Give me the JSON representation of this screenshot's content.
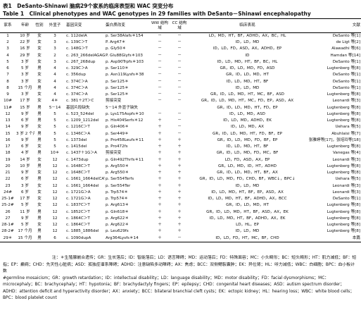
{
  "header": {
    "title_cn": "表1　DeSanto-Shinawi 脑病29个家系的临床表型和 WAC 突变分布",
    "title_en": "Table 1　Clinical phenotypes and WAC genotypes in 29 families with DeSanto－Shinawi encephalopathy"
  },
  "table": {
    "columns": [
      "家系",
      "年龄",
      "性别",
      "外显子",
      "基因突变",
      "蛋白质改变",
      "WW 结构域",
      "CC 结构域",
      "临床表现",
      "文献"
    ],
    "rows": [
      [
        "1",
        "10 岁",
        "女",
        "3",
        "c. 112delA",
        "p. Ser38Alafs＊154",
        "－",
        "－",
        "LD，MD，HT，BF，ADHD，AX，BC，HL",
        "DeSanto 等[1]"
      ],
      [
        "2",
        "22 岁",
        "女",
        "3",
        "c. 139C＞T",
        "P. Arg47＊",
        "－",
        "－",
        "ID，LD，MD",
        "de Ligt 等[2]"
      ],
      [
        "3",
        "16 岁",
        "女",
        "3",
        "c. 148G＞T",
        "p. Gly50＊",
        "－",
        "－",
        "ID，LD，FD，ASD，AX，ADHD，EP",
        "Alawadhi 等[6]"
      ],
      [
        "4",
        "29 岁",
        "女",
        "2",
        "c. 263_266delAGAG",
        "P. Glu88Glyfs＊103",
        "－",
        "－",
        "ID",
        "Hamdan 等[14]"
      ],
      [
        "5",
        "3 岁",
        "女",
        "3",
        "c. 267_268dup",
        "p. Asp90Trpfs＊103",
        "－",
        "－",
        "ID，LD，MD，HT，BF，BC，HL",
        "DeSanto 等[1]"
      ],
      [
        "6",
        "5 岁",
        "男",
        "4",
        "c. 329C＞A",
        "p. Ser110＊",
        "－",
        "－",
        "GR，ID，LD，MD，FD，ASD",
        "Lugtenberg 等[8]"
      ],
      [
        "7",
        "3 岁",
        "女",
        "4",
        "c. 356dup",
        "p. Asn119Lysfs＊38",
        "－",
        "－",
        "GR，ID，LD，MD，HT",
        "DeSanto 等[1]"
      ],
      [
        "8",
        "3 岁",
        "女",
        "4",
        "c. 374C＞A",
        "p. Ser125＊",
        "－",
        "－",
        "ID，LD，MD，HT，BF",
        "DeSanto 等[1]"
      ],
      [
        "8",
        "15 个月",
        "男",
        "4",
        "c. 374C＞A",
        "p. Ser125＊",
        "－",
        "－",
        "ID，LD，MD",
        "DeSanto 等[1]"
      ],
      [
        "9",
        "3 岁",
        "女",
        "4",
        "c. 374C＞A",
        "p. Ser125＊",
        "－",
        "－",
        "GR，ID，LD，MD，HT，MC，BF，ASD",
        "Lugtenberg 等[8]"
      ],
      [
        "10#",
        "17 岁",
        "女",
        "4＊",
        "c. 381＋2T＞C",
        "剪接突变",
        "－",
        "－",
        "GR，ID，LD，MD，HT，MC，FD，EP，ASD，AX",
        "Leonardi 等[3]"
      ],
      [
        "11#",
        "15 岁",
        "男",
        "5－14",
        "基因片段缺失",
        "5－14 外显子缺失",
        "",
        "",
        "GR，ID，LD，MD，HT，FD，EP",
        "Lugtenberg 等[8]"
      ],
      [
        "12",
        "9 岁",
        "男",
        "5",
        "c. 523_524del",
        "p. Lys175Aspfs＊10",
        "－",
        "－",
        "ID，LD，MD，ASD",
        "Lugtenberg 等[8]"
      ],
      [
        "13",
        "6 岁",
        "男",
        "5",
        "c. 1209_1212del",
        "p. His404Serfs＊12",
        "＋",
        "－",
        "ID，LD，MD，ADHD，EK",
        "Lugtenberg 等[8]"
      ],
      [
        "14",
        "9 岁",
        "女",
        "5",
        "c. 1216C＞T",
        "p. Gln406＊",
        "＋",
        "－",
        "ID，LD，MD，AX",
        "Uehara 等[5]"
      ],
      [
        "15",
        "3 岁 2 个月",
        "男",
        "5",
        "c. 1346C＞A",
        "p. Ser449＊",
        "＋",
        "－",
        "GR，ID，LD，MD，HT，FD，BF，EP",
        "Abuhlaisi 等[7]"
      ],
      [
        "16",
        "9 岁",
        "男",
        "5",
        "c. 1373del",
        "p. Pro458Leufs＊11",
        "＋",
        "＋",
        "GR，ID，LD，MD，FD，BF，EP",
        "张雅婷等[17]，张培玲等[18]"
      ],
      [
        "17",
        "6 岁",
        "女",
        "5",
        "c. 1415del",
        "p. Pro472fs",
        "＋",
        "＋",
        "ID，LD，MD，HT，BF",
        "Lugtenberg 等[8]"
      ],
      [
        "18",
        "4 岁",
        "男",
        "10＊",
        "c. 1437＋1G＞A",
        "剪接突变",
        "＋",
        "＋",
        "GR，ID，LD，MD，FD，MC，BF",
        "Vanegas 等[4]"
      ],
      [
        "19",
        "14 岁",
        "女",
        "12",
        "c. 1473dup",
        "p. Gln492Thrfs＊11",
        "＋",
        "＋",
        "LD，FD，ASD，AX，EP",
        "Leonardi 等[3]"
      ],
      [
        "20",
        "10 岁",
        "男",
        "12",
        "c. 1648C＞T",
        "p. Arg550＊",
        "＋",
        "＋",
        "GR，LD，MD，ID，HT，ADHD",
        "Lugtenberg 等[8]"
      ],
      [
        "21",
        "9 岁",
        "女",
        "12",
        "c. 1648C＞T",
        "p. Arg550＊",
        "＋",
        "＋",
        "GR，ID，LD，MD，HT，BF，AX",
        "Lugtenberg 等[8]"
      ],
      [
        "22",
        "6 岁",
        "男",
        "12",
        "c. 1661_1664delCATT",
        "p. Ser554Terfs",
        "＋",
        "＋",
        "GR，ID，LD，MD，FD，CHD，BF，WBC↓，BPC↓",
        "Uehara 等[5]"
      ],
      [
        "23",
        "3 岁",
        "女",
        "12",
        "c. 1661_1664del",
        "p. Ser554Ter",
        "＋",
        "＋",
        "ID，LD，MD",
        "Leonardi 等[3]"
      ],
      [
        "24#",
        "6 岁",
        "女",
        "12",
        "c. 1721G＞A",
        "p. Trp574＊",
        "＋",
        "＋",
        "ID，LD，MD，HT，BF，EP，ASD，AX",
        "Leonardi 等[3]"
      ],
      [
        "25-1#",
        "17 岁",
        "女",
        "12",
        "c. 1721G＞A",
        "p. Trp574＊",
        "＋",
        "＋",
        "ID，LD，MD，HT，BF，ADHD，AX，BCC",
        "DeSanto 等[1]"
      ],
      [
        "25-2#",
        "5 岁",
        "女",
        "12",
        "c. 1837C＞T",
        "p. Arg613＊",
        "＋",
        "＋",
        "GR，ID，LD，MD，HT",
        "Lugtenberg 等[8]"
      ],
      [
        "26",
        "11 岁",
        "男",
        "12",
        "c. 1852C＞T",
        "p. Gln618＊",
        "＋",
        "＋",
        "GR，ID，LD，MD，HT，BF，ASD，AX，EK",
        "Lugtenberg 等[8]"
      ],
      [
        "27",
        "9 岁",
        "男",
        "12",
        "c. 1864C＞T",
        "p. Arg622＊",
        "＋",
        "＋",
        "ID，LD，MD，HT，BF，ADHD，AX，EK",
        "Lugtenberg 等[8]"
      ],
      [
        "28-1#",
        "5 岁",
        "女",
        "12",
        "c. 1864C＞T",
        "p. Arg622＊",
        "＋",
        "＋",
        "LD，HL，EP",
        "Lugtenberg 等[8]"
      ],
      [
        "28-2#",
        "17 个月",
        "男",
        "12",
        "c. 1885_1886del",
        "p. Leu629fs",
        "＋",
        "＋",
        "ID，LD，MD",
        "Lugtenberg 等[8]"
      ],
      [
        "29＊",
        "15 个月",
        "男",
        "6",
        "c. 1090dupA",
        "Arg364Lysfs＊14",
        "＋",
        "－",
        "ID，LD，FD，HT，MC，BF，CHD",
        "本篇"
      ]
    ]
  },
  "notes": {
    "cn": "注：＊生殖腺嵌合遗传；GR：生长落后；ID：智能落后；LD：语言障碍；MD：运动落后；FD：特殊面容；MC：小头畸形；BC：短头畸形；HT：肌力减低；BF：短指；EP：癫痫；CHD：先天性心脏病；ASD：孤独症谱系障碍；ADHD：注意缺陷多动障碍；AX：焦虑；BCC：双侧鳃裂囊肿；EK：异位肾；HL：听力减低；WBC：白细胞；BPC：血小板计数",
    "en": "#germline mosaicism；GR：growth retardation；ID：intellectual disability；LD：language disability；MD：motor disability；FD：facial dysmorphisms；MC：microcephaly；BC：brachycephaly；HT：hypotonia；BF：brachydactyly fingers；EP：epilepsy；CHD：congenital heart diseases；ASD：autism spectrum disorder；ADHD：attention deficit and hyperactivity disorder；AX：anxiety；BCC：bilateral branchial cleft cysts；EK：ectopic kidney；HL：hearing loss；WBC：white blood cells；BPC：blood platelet count"
  }
}
